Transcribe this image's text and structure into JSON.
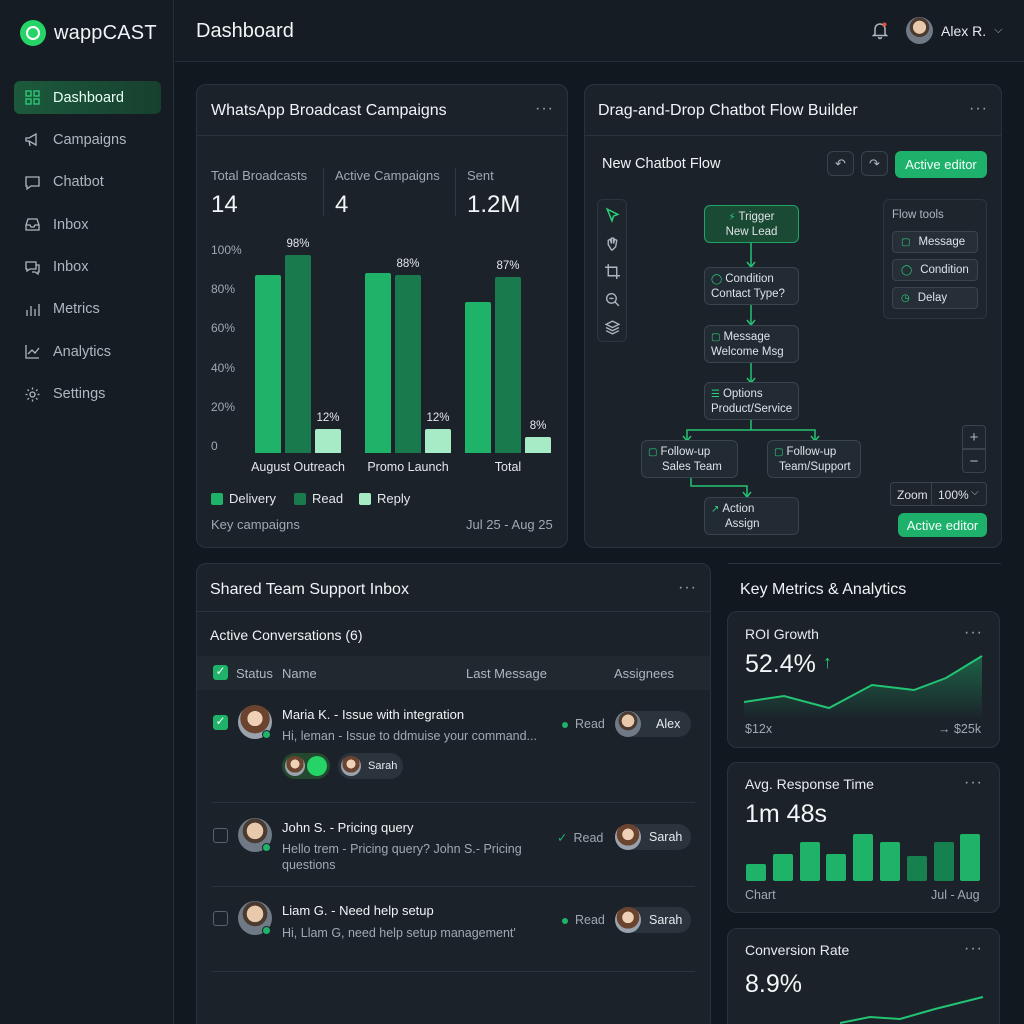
{
  "app": {
    "brand": "wappCAST",
    "page_title": "Dashboard"
  },
  "user": {
    "name": "Alex R."
  },
  "sidebar": {
    "items": [
      {
        "label": "Dashboard",
        "icon": "grid-icon",
        "active": true
      },
      {
        "label": "Campaigns",
        "icon": "megaphone-icon"
      },
      {
        "label": "Chatbot",
        "icon": "chat-icon"
      },
      {
        "label": "Inbox",
        "icon": "inbox-tray-icon"
      },
      {
        "label": "Inbox",
        "icon": "messages-icon"
      },
      {
        "label": "Metrics",
        "icon": "bar-chart-icon"
      },
      {
        "label": "Analytics",
        "icon": "line-chart-icon"
      },
      {
        "label": "Settings",
        "icon": "gear-icon"
      }
    ]
  },
  "broadcast": {
    "title": "WhatsApp Broadcast Campaigns",
    "stats": [
      {
        "label": "Total Broadcasts",
        "value": "14"
      },
      {
        "label": "Active Campaigns",
        "value": "4"
      },
      {
        "label": "Sent",
        "value": "1.2M"
      }
    ],
    "footer_left": "Key campaigns",
    "footer_right": "Jul 25 - Aug 25"
  },
  "chart_data": {
    "type": "bar",
    "categories": [
      "August Outreach",
      "Promo Launch",
      "Total"
    ],
    "series": [
      {
        "name": "Delivery",
        "values": [
          88,
          89,
          75
        ],
        "color": "#1fb36a"
      },
      {
        "name": "Read",
        "values": [
          98,
          88,
          87
        ],
        "color": "#187a4d"
      },
      {
        "name": "Reply",
        "values": [
          12,
          12,
          8
        ],
        "color": "#a6ebc6"
      }
    ],
    "data_labels": [
      {
        "category": 0,
        "series": 1,
        "text": "98%"
      },
      {
        "category": 0,
        "series": 2,
        "text": "12%"
      },
      {
        "category": 1,
        "series": 1,
        "text": "88%"
      },
      {
        "category": 1,
        "series": 2,
        "text": "12%"
      },
      {
        "category": 2,
        "series": 1,
        "text": "87%"
      },
      {
        "category": 2,
        "series": 2,
        "text": "8%"
      }
    ],
    "yticks": [
      "100%",
      "80%",
      "60%",
      "40%",
      "20%",
      "0"
    ],
    "ylim": [
      0,
      100
    ],
    "legend": "bottom-left"
  },
  "flow": {
    "title": "Drag-and-Drop Chatbot Flow Builder",
    "subtitle": "New Chatbot Flow",
    "editor_button": "Active editor",
    "editor_button_bottom": "Active editor",
    "nodes": {
      "trigger": {
        "line1": "Trigger",
        "line2": "New Lead"
      },
      "condition": {
        "line1": "Condition",
        "line2": "Contact Type?"
      },
      "message": {
        "line1": "Message",
        "line2": "Welcome Msg"
      },
      "options": {
        "line1": "Options",
        "line2": "Product/Service"
      },
      "followup_sales": {
        "line1": "Follow-up",
        "line2": "Sales Team"
      },
      "followup_support": {
        "line1": "Follow-up",
        "line2": "Team/Support"
      },
      "action": {
        "line1": "Action",
        "line2": "Assign"
      }
    },
    "tools": {
      "title": "Flow tools",
      "items": [
        "Message",
        "Condition",
        "Delay"
      ]
    },
    "zoom": {
      "label": "Zoom",
      "value": "100%"
    }
  },
  "inbox": {
    "title": "Shared Team Support Inbox",
    "subtitle": "Active Conversations (6)",
    "columns": [
      "Status",
      "Name",
      "Last Message",
      "Assignees"
    ],
    "rows": [
      {
        "title": "Maria K. - Issue with integration",
        "message": "Hi, leman - Issue to ddmuise your command...",
        "status": "Read",
        "assignee": "Alex",
        "tag": "Sarah",
        "checked": true
      },
      {
        "title": "John S. - Pricing query",
        "message": "Hello trem - Pricing query? John S.- Pricing questions",
        "status": "Read",
        "assignee": "Sarah",
        "checked": false
      },
      {
        "title": "Liam G. - Need help setup",
        "message": "Hi, Llam G, need help setup management'",
        "status": "Read",
        "assignee": "Sarah",
        "checked": false
      }
    ]
  },
  "metrics": {
    "title": "Key Metrics & Analytics",
    "roi": {
      "label": "ROI Growth",
      "value": "52.4%",
      "foot_left": "$12x",
      "foot_right": "→ $25k"
    },
    "response": {
      "label": "Avg. Response Time",
      "value": "1m 48s",
      "foot_left": "Chart",
      "foot_right": "Jul - Aug",
      "bars": [
        0.35,
        0.55,
        0.78,
        0.55,
        0.95,
        0.78,
        0.5,
        0.78,
        0.95
      ]
    },
    "conversion": {
      "label": "Conversion Rate",
      "value": "8.9%"
    }
  }
}
